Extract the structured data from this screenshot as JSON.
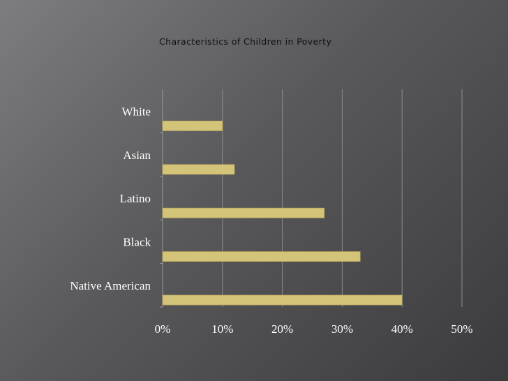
{
  "chart_data": {
    "type": "bar",
    "orientation": "horizontal",
    "title": "Characteristics of Children in Poverty",
    "categories": [
      "White",
      "Asian",
      "Latino",
      "Black",
      "Native American"
    ],
    "values": [
      10,
      12,
      27,
      33,
      40
    ],
    "xlim": [
      0,
      50
    ],
    "xticks": [
      "0%",
      "10%",
      "20%",
      "30%",
      "40%",
      "50%"
    ],
    "grid": true,
    "colors": {
      "bar": "#d4c479",
      "bar_stroke": "#b9a95c",
      "grid": "#8d8d8d"
    }
  }
}
